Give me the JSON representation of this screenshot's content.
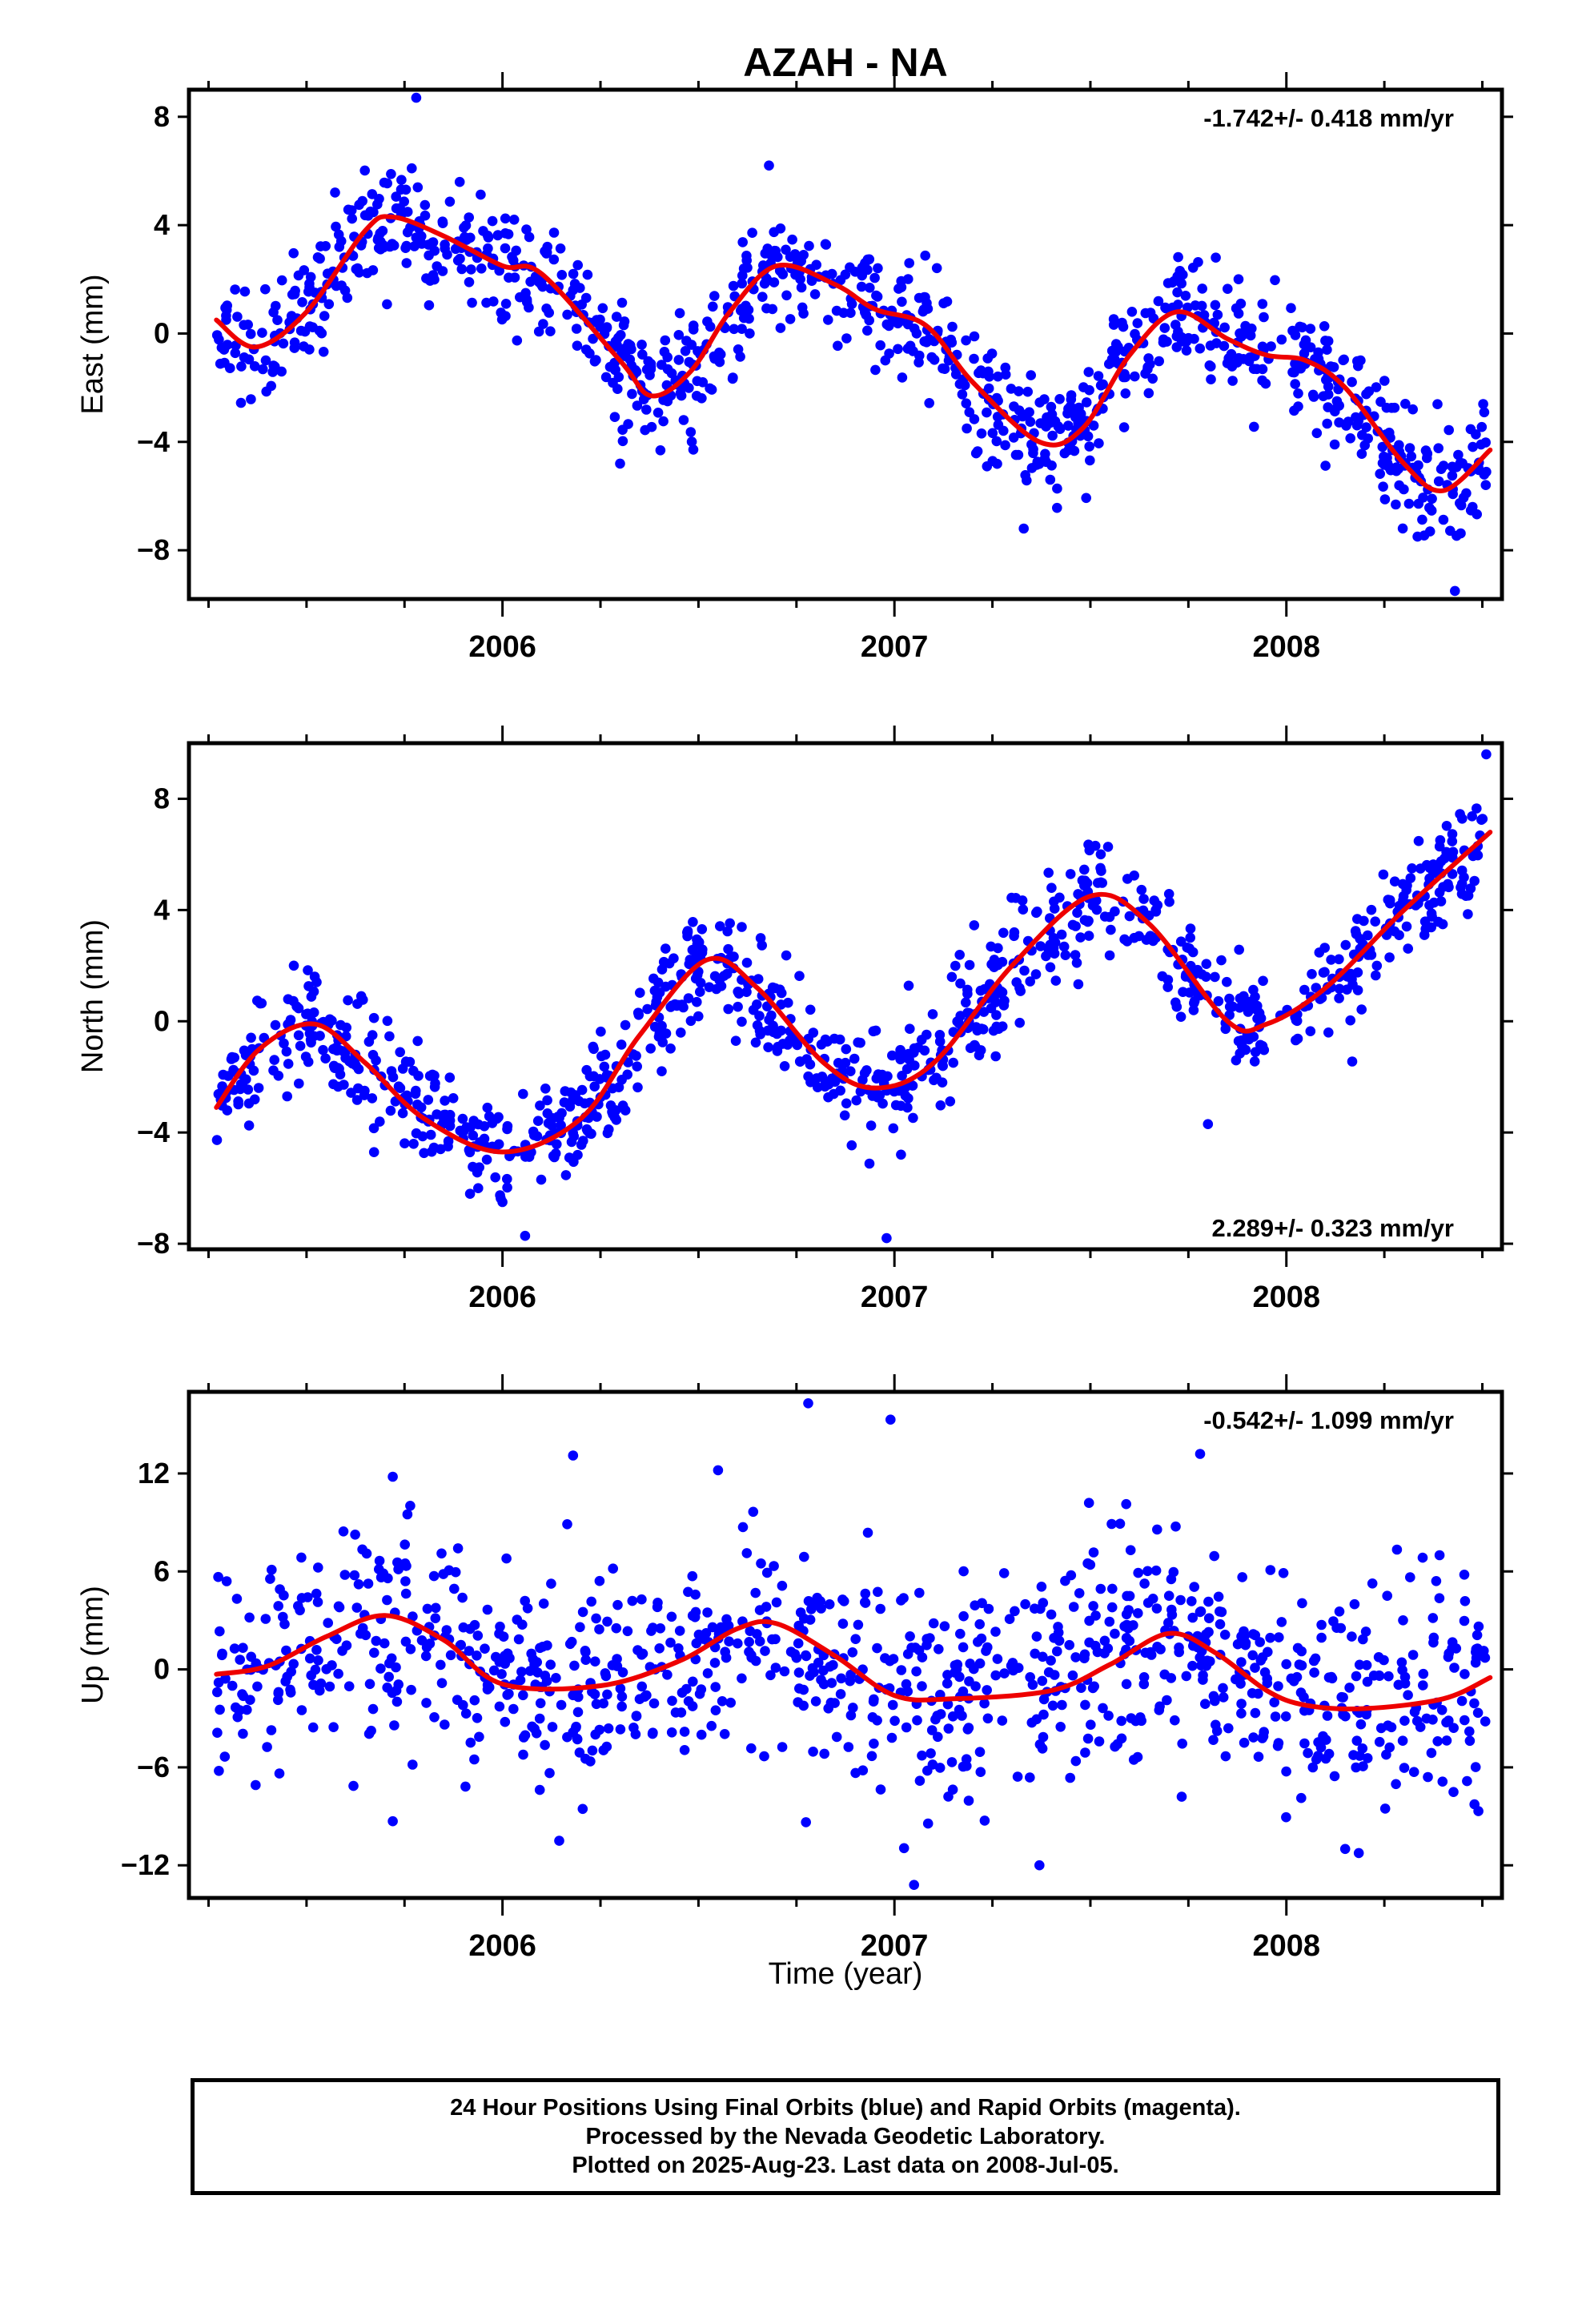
{
  "figure": {
    "title": "AZAH - NA",
    "xlabel": "Time (year)",
    "footer": [
      "24 Hour Positions Using Final Orbits (blue) and Rapid Orbits (magenta).",
      "Processed by the Nevada Geodetic Laboratory.",
      "Plotted on 2025-Aug-23. Last data on 2008-Jul-05."
    ],
    "colors": {
      "points": "#0000ff",
      "fit": "#ee0000",
      "frame": "#000000"
    }
  },
  "chart_data": [
    {
      "type": "scatter",
      "ylabel": "East (mm)",
      "rate": "-1.742+/- 0.418 mm/yr",
      "rate_position": "top-right",
      "xlim": [
        2005.2,
        2008.55
      ],
      "ylim": [
        -9.8,
        9.0
      ],
      "xticks": [
        2006,
        2007,
        2008
      ],
      "yticks": [
        8,
        4,
        0,
        -4,
        -8
      ],
      "ytick_labels": [
        "8",
        "4",
        "0",
        "−4",
        "−8"
      ],
      "first_data": 2005.27,
      "last_data": 2008.51,
      "fit": {
        "x": [
          2005.27,
          2005.37,
          2005.5,
          2005.65,
          2005.72,
          2005.85,
          2006.0,
          2006.1,
          2006.3,
          2006.38,
          2006.48,
          2006.58,
          2006.7,
          2006.85,
          2006.95,
          2007.08,
          2007.2,
          2007.37,
          2007.48,
          2007.6,
          2007.72,
          2007.85,
          2007.95,
          2008.05,
          2008.15,
          2008.3,
          2008.4,
          2008.52
        ],
        "y": [
          0.5,
          -0.5,
          0.8,
          3.8,
          4.3,
          3.6,
          2.5,
          2.2,
          -1.0,
          -2.3,
          -1.4,
          0.8,
          2.5,
          1.8,
          0.9,
          0.3,
          -1.8,
          -4.0,
          -3.5,
          -0.8,
          0.8,
          -0.2,
          -0.8,
          -1.0,
          -2.0,
          -4.8,
          -5.8,
          -4.3
        ]
      },
      "scatter": {
        "sigma": 1.1,
        "count": 1050,
        "extremes": [
          [
            2005.78,
            8.7
          ],
          [
            2006.68,
            6.2
          ],
          [
            2007.82,
            2.8
          ],
          [
            2008.43,
            -9.5
          ],
          [
            2007.33,
            -7.2
          ],
          [
            2006.3,
            -4.8
          ]
        ]
      }
    },
    {
      "type": "scatter",
      "ylabel": "North (mm)",
      "rate": "2.289+/- 0.323 mm/yr",
      "rate_position": "bottom-right",
      "xlim": [
        2005.2,
        2008.55
      ],
      "ylim": [
        -8.2,
        10.0
      ],
      "xticks": [
        2006,
        2007,
        2008
      ],
      "yticks": [
        8,
        4,
        0,
        -4,
        -8
      ],
      "ytick_labels": [
        "8",
        "4",
        "0",
        "−4",
        "−8"
      ],
      "first_data": 2005.27,
      "last_data": 2008.51,
      "fit": {
        "x": [
          2005.27,
          2005.38,
          2005.52,
          2005.65,
          2005.8,
          2006.0,
          2006.2,
          2006.35,
          2006.52,
          2006.65,
          2006.82,
          2006.95,
          2007.1,
          2007.3,
          2007.5,
          2007.65,
          2007.85,
          2007.95,
          2008.1,
          2008.3,
          2008.52
        ],
        "y": [
          -3.1,
          -1.0,
          -0.1,
          -1.5,
          -3.5,
          -4.7,
          -3.5,
          -0.5,
          2.2,
          1.2,
          -1.5,
          -2.4,
          -1.5,
          2.0,
          4.5,
          3.5,
          0.0,
          -0.1,
          1.2,
          4.0,
          6.8
        ]
      },
      "scatter": {
        "sigma": 1.0,
        "count": 1000,
        "extremes": [
          [
            2008.51,
            9.6
          ],
          [
            2006.98,
            -7.8
          ],
          [
            2006.0,
            -6.5
          ],
          [
            2007.8,
            -3.7
          ]
        ]
      }
    },
    {
      "type": "scatter",
      "ylabel": "Up (mm)",
      "rate": "-0.542+/- 1.099 mm/yr",
      "rate_position": "top-right",
      "xlim": [
        2005.2,
        2008.55
      ],
      "ylim": [
        -14.0,
        17.0
      ],
      "xticks": [
        2006,
        2007,
        2008
      ],
      "yticks": [
        12,
        6,
        0,
        -6,
        -12
      ],
      "ytick_labels": [
        "12",
        "6",
        "0",
        "−6",
        "−12"
      ],
      "first_data": 2005.27,
      "last_data": 2008.51,
      "fit": {
        "x": [
          2005.27,
          2005.4,
          2005.55,
          2005.7,
          2005.85,
          2006.0,
          2006.25,
          2006.45,
          2006.6,
          2006.7,
          2006.85,
          2007.0,
          2007.15,
          2007.4,
          2007.55,
          2007.7,
          2007.82,
          2007.95,
          2008.05,
          2008.2,
          2008.4,
          2008.52
        ],
        "y": [
          -0.3,
          0.2,
          2.0,
          3.3,
          1.8,
          -0.9,
          -1.0,
          0.5,
          2.5,
          2.8,
          0.8,
          -1.6,
          -1.8,
          -1.3,
          0.3,
          2.2,
          1.0,
          -1.3,
          -2.2,
          -2.4,
          -1.8,
          -0.5
        ]
      },
      "scatter": {
        "sigma": 3.3,
        "count": 1000,
        "extremes": [
          [
            2006.78,
            16.3
          ],
          [
            2006.99,
            15.3
          ],
          [
            2007.05,
            -13.2
          ],
          [
            2006.18,
            13.1
          ],
          [
            2007.78,
            13.2
          ],
          [
            2005.72,
            11.8
          ],
          [
            2006.55,
            12.2
          ],
          [
            2007.37,
            -12.0
          ],
          [
            2005.72,
            -9.3
          ],
          [
            2008.15,
            -11.0
          ]
        ]
      }
    }
  ]
}
